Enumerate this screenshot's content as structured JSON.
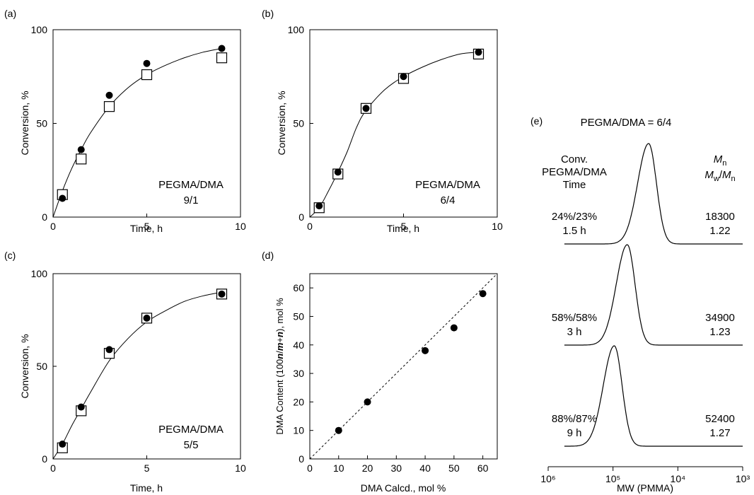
{
  "colors": {
    "ink": "#000000",
    "open_marker_fill": "#ffffff",
    "background": "#ffffff"
  },
  "chart_data": [
    {
      "type": "scatter",
      "panel": "(a)",
      "xlabel": "Time, h",
      "ylabel": "Conversion, %",
      "xlim": [
        0,
        10
      ],
      "ylim": [
        0,
        100
      ],
      "xticks": [
        0,
        5,
        10
      ],
      "yticks": [
        0,
        50,
        100
      ],
      "series": [
        {
          "marker": "filled-circle",
          "x": [
            0.5,
            1.5,
            3,
            5,
            9
          ],
          "y": [
            10,
            36,
            65,
            82,
            90
          ]
        },
        {
          "marker": "open-square",
          "x": [
            0.5,
            1.5,
            3,
            5,
            9
          ],
          "y": [
            12,
            31,
            59,
            76,
            85
          ]
        }
      ],
      "fit_curve": {
        "x": [
          0,
          0.5,
          1,
          1.5,
          2,
          3,
          4,
          5,
          6,
          7,
          8,
          9
        ],
        "y": [
          0,
          14,
          26,
          36,
          45,
          59,
          69,
          76,
          81,
          85,
          88,
          90
        ]
      },
      "annotation": [
        "PEGMA/DMA",
        "9/1"
      ]
    },
    {
      "type": "scatter",
      "panel": "(b)",
      "xlabel": "Time, h",
      "ylabel": "Conversion, %",
      "xlim": [
        0,
        10
      ],
      "ylim": [
        0,
        100
      ],
      "xticks": [
        0,
        5,
        10
      ],
      "yticks": [
        0,
        50,
        100
      ],
      "series": [
        {
          "marker": "filled-circle",
          "x": [
            0.5,
            1.5,
            3,
            5,
            9
          ],
          "y": [
            6,
            24,
            58,
            75,
            88
          ]
        },
        {
          "marker": "open-square",
          "x": [
            0.5,
            1.5,
            3,
            5,
            9
          ],
          "y": [
            5,
            23,
            58,
            74,
            87
          ]
        }
      ],
      "fit_curve": {
        "x": [
          0,
          0.5,
          1,
          1.5,
          2,
          2.5,
          3,
          4,
          5,
          6,
          7,
          8,
          9
        ],
        "y": [
          0,
          5,
          14,
          24,
          35,
          48,
          57,
          68,
          75,
          80,
          84,
          87,
          88
        ]
      },
      "annotation": [
        "PEGMA/DMA",
        "6/4"
      ]
    },
    {
      "type": "scatter",
      "panel": "(c)",
      "xlabel": "Time, h",
      "ylabel": "Conversion, %",
      "xlim": [
        0,
        10
      ],
      "ylim": [
        0,
        100
      ],
      "xticks": [
        0,
        5,
        10
      ],
      "yticks": [
        0,
        50,
        100
      ],
      "series": [
        {
          "marker": "filled-circle",
          "x": [
            0.5,
            1.5,
            3,
            5,
            9
          ],
          "y": [
            8,
            28,
            59,
            76,
            89
          ]
        },
        {
          "marker": "open-square",
          "x": [
            0.5,
            1.5,
            3,
            5,
            9
          ],
          "y": [
            6,
            26,
            57,
            76,
            89
          ]
        }
      ],
      "fit_curve": {
        "x": [
          0,
          0.5,
          1,
          1.5,
          2,
          3,
          4,
          5,
          6,
          7,
          8,
          9
        ],
        "y": [
          0,
          8,
          18,
          27,
          36,
          53,
          65,
          74,
          80,
          85,
          88,
          90
        ]
      },
      "annotation": [
        "PEGMA/DMA",
        "5/5"
      ]
    },
    {
      "type": "scatter",
      "panel": "(d)",
      "xlabel": "DMA Calcd., mol %",
      "ylabel": "DMA Content (100n/m+n), mol %",
      "xlim": [
        0,
        65
      ],
      "ylim": [
        0,
        65
      ],
      "xticks": [
        0,
        10,
        20,
        30,
        40,
        50,
        60
      ],
      "yticks": [
        0,
        10,
        20,
        30,
        40,
        50,
        60
      ],
      "series": [
        {
          "marker": "filled-circle",
          "x": [
            10,
            20,
            40,
            50,
            60
          ],
          "y": [
            10,
            20,
            38,
            46,
            58
          ]
        }
      ],
      "reference_line": "dotted y = x"
    },
    {
      "type": "line",
      "panel": "(e)",
      "title": "PEGMA/DMA = 6/4",
      "xlabel": "MW (PMMA)",
      "x_scale": "log, reversed",
      "xticks": [
        "10⁶",
        "10⁵",
        "10⁴",
        "10³"
      ],
      "left_header": [
        "Conv.",
        "PEGMA/DMA",
        "Time"
      ],
      "right_header": [
        "Mn",
        "Mw/Mn"
      ],
      "traces": [
        {
          "conversion": "24%/23%",
          "time": "1.5 h",
          "Mn": "18300",
          "Mw_Mn": "1.22",
          "peak_log10_MW": 4.45,
          "height": 1.0
        },
        {
          "conversion": "58%/58%",
          "time": "3 h",
          "Mn": "34900",
          "Mw_Mn": "1.23",
          "peak_log10_MW": 4.78,
          "height": 1.0
        },
        {
          "conversion": "88%/87%",
          "time": "9 h",
          "Mn": "52400",
          "Mw_Mn": "1.27",
          "peak_log10_MW": 4.98,
          "height": 1.0
        }
      ]
    }
  ]
}
